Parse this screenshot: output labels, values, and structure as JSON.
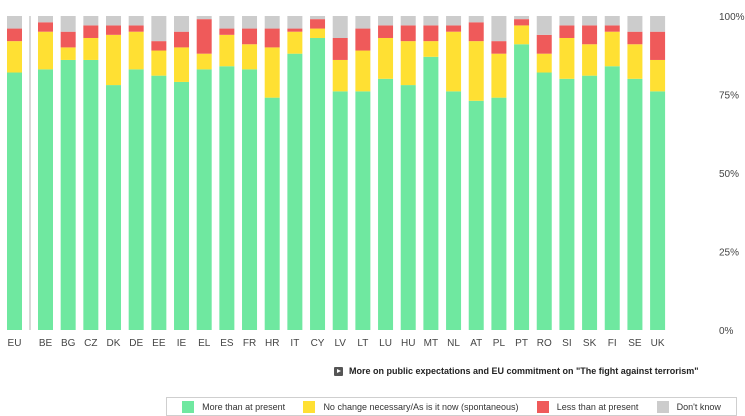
{
  "chart_data": {
    "type": "bar",
    "stacked": true,
    "categories": [
      "EU",
      "BE",
      "BG",
      "CZ",
      "DK",
      "DE",
      "EE",
      "IE",
      "EL",
      "ES",
      "FR",
      "HR",
      "IT",
      "CY",
      "LV",
      "LT",
      "LU",
      "HU",
      "MT",
      "NL",
      "AT",
      "PL",
      "PT",
      "RO",
      "SI",
      "SK",
      "FI",
      "SE",
      "UK"
    ],
    "series": [
      {
        "name": "More than at present",
        "color": "#6fe8a0",
        "values": [
          82,
          83,
          86,
          86,
          78,
          83,
          81,
          79,
          83,
          84,
          83,
          74,
          88,
          93,
          76,
          76,
          80,
          78,
          87,
          76,
          73,
          74,
          91,
          82,
          80,
          81,
          84,
          80,
          76
        ]
      },
      {
        "name": "No change necessary/As is it now (spontaneous)",
        "color": "#ffe033",
        "values": [
          10,
          12,
          4,
          7,
          16,
          12,
          8,
          11,
          5,
          10,
          8,
          16,
          7,
          3,
          10,
          13,
          13,
          14,
          5,
          19,
          19,
          14,
          6,
          6,
          13,
          10,
          11,
          11,
          10
        ]
      },
      {
        "name": "Less than at present",
        "color": "#ef5a5a",
        "values": [
          4,
          3,
          5,
          4,
          3,
          2,
          3,
          5,
          11,
          2,
          5,
          6,
          1,
          3,
          7,
          7,
          4,
          5,
          5,
          2,
          6,
          4,
          2,
          6,
          4,
          6,
          2,
          4,
          9
        ]
      },
      {
        "name": "Don't know",
        "color": "#cccccc",
        "values": [
          4,
          2,
          5,
          3,
          3,
          3,
          8,
          5,
          1,
          4,
          4,
          4,
          4,
          1,
          7,
          4,
          3,
          3,
          3,
          3,
          2,
          8,
          1,
          6,
          3,
          3,
          3,
          5,
          5
        ]
      }
    ],
    "ylim": [
      0,
      100
    ],
    "yticks": [
      "0%",
      "25%",
      "50%",
      "75%",
      "100%"
    ],
    "grid": false,
    "legend_position": "bottom"
  },
  "footer": {
    "link_text": "More on public expectations and EU commitment on \"The fight against terrorism\""
  },
  "colors": {
    "separator": "#cccccc",
    "text": "#333333"
  }
}
